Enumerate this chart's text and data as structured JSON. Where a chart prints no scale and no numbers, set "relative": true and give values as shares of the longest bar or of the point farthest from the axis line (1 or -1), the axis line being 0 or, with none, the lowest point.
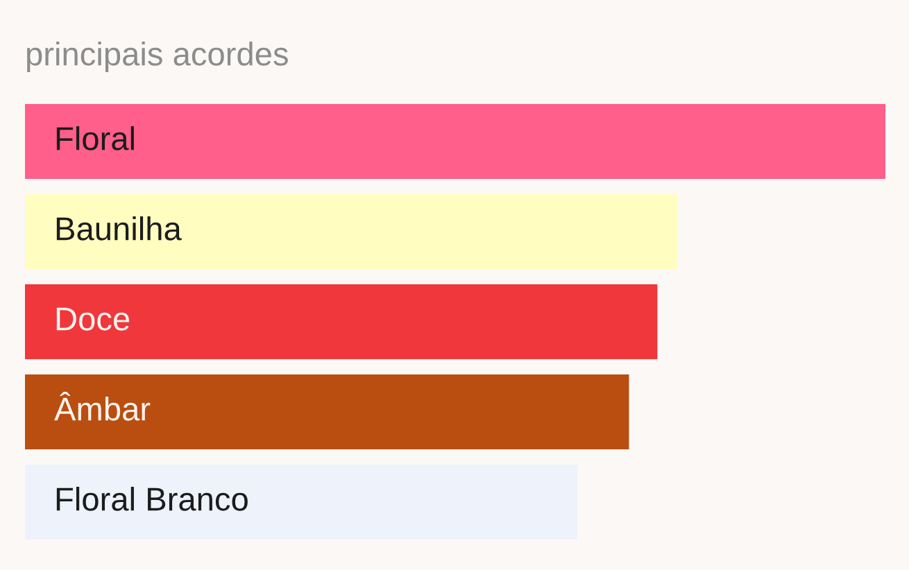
{
  "chart_data": {
    "type": "bar",
    "orientation": "horizontal",
    "relative": true,
    "title": "principais acordes",
    "categories": [
      "Floral",
      "Baunilha",
      "Doce",
      "Âmbar",
      "Floral Branco"
    ],
    "values": [
      1,
      0.758,
      0.735,
      0.702,
      0.642
    ],
    "colors": [
      "#ff5f8a",
      "#fffdc0",
      "#f0373c",
      "#b94e10",
      "#edf2fb"
    ]
  }
}
